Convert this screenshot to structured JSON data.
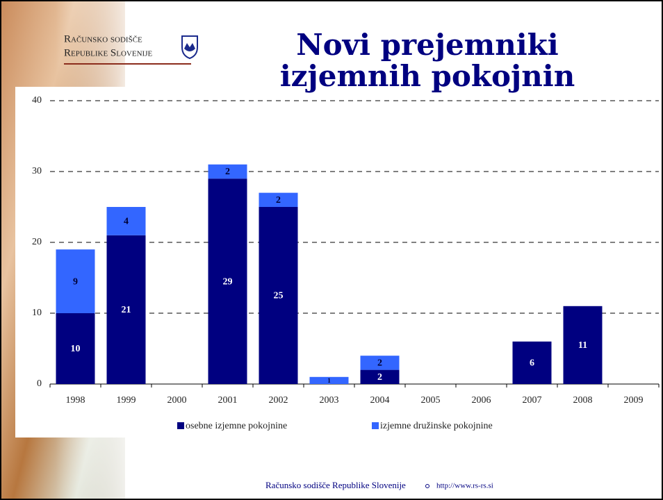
{
  "logo": {
    "line1": "Računsko sodišče",
    "line2": "Republike Slovenije"
  },
  "footer": {
    "text": "Računsko sodišče Republike Slovenije",
    "url": "http://www.rs-rs.si"
  },
  "chart_data": {
    "type": "stacked_bar",
    "title_lines": [
      "Novi prejemniki",
      "izjemnih pokojnin"
    ],
    "categories": [
      "1998",
      "1999",
      "2000",
      "2001",
      "2002",
      "2003",
      "2004",
      "2005",
      "2006",
      "2007",
      "2008",
      "2009"
    ],
    "series": [
      {
        "name": "osebne izjemne pokojnine",
        "color": "#000080",
        "label_color": "#ffffff",
        "values": [
          10,
          21,
          null,
          29,
          25,
          null,
          2,
          null,
          null,
          6,
          11,
          null
        ]
      },
      {
        "name": "izjemne družinske pokojnine",
        "color": "#3366ff",
        "label_color": "#000033",
        "values": [
          9,
          4,
          null,
          2,
          2,
          1,
          2,
          null,
          null,
          null,
          null,
          null
        ]
      }
    ],
    "ylim": [
      0,
      40
    ],
    "yticks": [
      0,
      10,
      20,
      30,
      40
    ],
    "grid": true
  }
}
